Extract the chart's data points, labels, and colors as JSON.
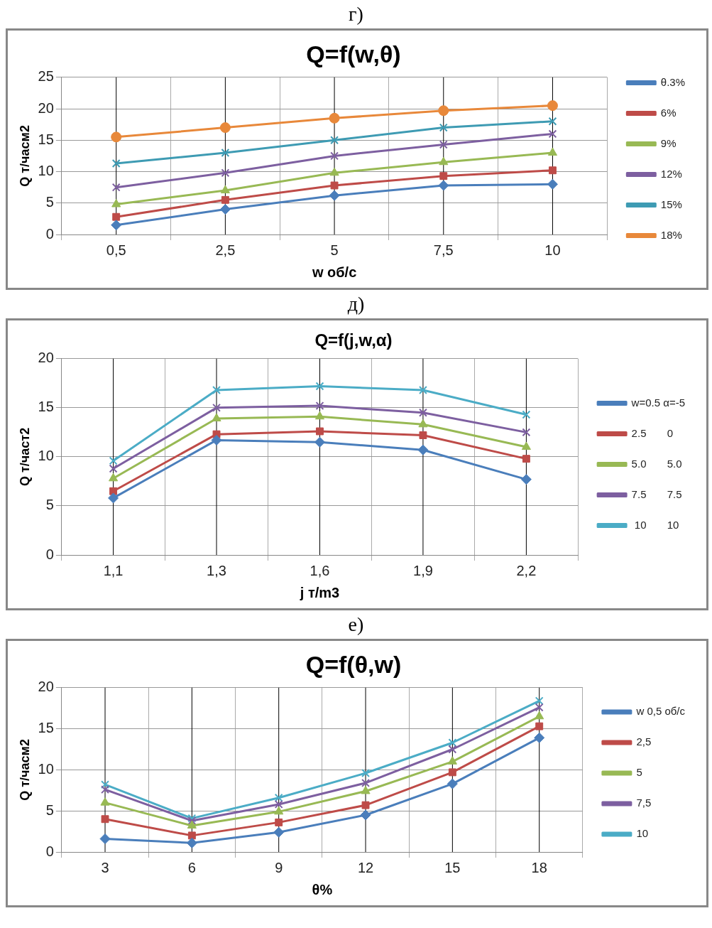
{
  "chart_data": [
    {
      "type": "line",
      "title": "Q=f(w,θ)",
      "annotations": [
        "г)"
      ],
      "xlabel": "w об/с",
      "ylabel": "Q т/часм2",
      "categories": [
        "0,5",
        "2,5",
        "5",
        "7,5",
        "10"
      ],
      "ylim": [
        0,
        25
      ],
      "yticks": [
        0,
        5,
        10,
        15,
        20,
        25
      ],
      "grid": true,
      "legend": "right",
      "series": [
        {
          "name": "θ.3%",
          "color": "#4a7ebb",
          "marker": "diamond",
          "values": [
            1.5,
            4,
            6.2,
            7.8,
            8
          ]
        },
        {
          "name": "6%",
          "color": "#be4b48",
          "marker": "square",
          "values": [
            2.8,
            5.5,
            7.8,
            9.3,
            10.2
          ]
        },
        {
          "name": "9%",
          "color": "#98b954",
          "marker": "triangle",
          "values": [
            4.8,
            7,
            9.8,
            11.5,
            13
          ]
        },
        {
          "name": "12%",
          "color": "#7d5fa0",
          "marker": "cross",
          "values": [
            7.5,
            9.8,
            12.5,
            14.3,
            16
          ]
        },
        {
          "name": "15%",
          "color": "#3e9bb3",
          "marker": "cross",
          "values": [
            11.3,
            13,
            15,
            17,
            18
          ]
        },
        {
          "name": "18%",
          "color": "#e8883a",
          "marker": "circle",
          "values": [
            15.5,
            17,
            18.5,
            19.7,
            20.5
          ]
        }
      ]
    },
    {
      "type": "line",
      "title": "Q=f(j,w,α)",
      "annotations": [
        "д)"
      ],
      "xlabel": "j т/m3",
      "ylabel": "Q т/част2",
      "categories": [
        "1,1",
        "1,3",
        "1,6",
        "1,9",
        "2,2"
      ],
      "ylim": [
        0,
        20
      ],
      "yticks": [
        0,
        5,
        10,
        15,
        20
      ],
      "grid": true,
      "legend": "right",
      "series": [
        {
          "name": "w=0.5 α=-5",
          "color": "#4a7ebb",
          "marker": "diamond",
          "values": [
            5.8,
            11.7,
            11.5,
            10.7,
            7.7
          ]
        },
        {
          "name": "2.5       0",
          "color": "#be4b48",
          "marker": "square",
          "values": [
            6.5,
            12.3,
            12.6,
            12.2,
            9.8
          ]
        },
        {
          "name": "5.0       5.0",
          "color": "#98b954",
          "marker": "triangle",
          "values": [
            7.8,
            13.9,
            14.1,
            13.3,
            11
          ]
        },
        {
          "name": "7.5       7.5",
          "color": "#7d5fa0",
          "marker": "cross",
          "values": [
            8.8,
            15,
            15.2,
            14.5,
            12.5
          ]
        },
        {
          "name": " 10       10",
          "color": "#4bacc6",
          "marker": "cross",
          "values": [
            9.6,
            16.8,
            17.2,
            16.8,
            14.3
          ]
        }
      ]
    },
    {
      "type": "line",
      "title": "Q=f(θ,w)",
      "annotations": [
        "е)"
      ],
      "xlabel": "θ%",
      "ylabel": "Q т/часм2",
      "categories": [
        "3",
        "6",
        "9",
        "12",
        "15",
        "18"
      ],
      "ylim": [
        0,
        20
      ],
      "yticks": [
        0,
        5,
        10,
        15,
        20
      ],
      "grid": true,
      "legend": "right",
      "series": [
        {
          "name": "w 0,5 об/с",
          "color": "#4a7ebb",
          "marker": "diamond",
          "values": [
            1.6,
            1.1,
            2.4,
            4.5,
            8.3,
            13.9
          ]
        },
        {
          "name": "2,5",
          "color": "#be4b48",
          "marker": "square",
          "values": [
            4,
            2,
            3.6,
            5.7,
            9.7,
            15.3
          ]
        },
        {
          "name": "5",
          "color": "#98b954",
          "marker": "triangle",
          "values": [
            6,
            3.2,
            4.9,
            7.4,
            11,
            16.5
          ]
        },
        {
          "name": "7,5",
          "color": "#7d5fa0",
          "marker": "cross",
          "values": [
            7.6,
            3.8,
            5.8,
            8.4,
            12.5,
            17.6
          ]
        },
        {
          "name": "10",
          "color": "#4bacc6",
          "marker": "cross",
          "values": [
            8.2,
            4.1,
            6.6,
            9.6,
            13.3,
            18.4
          ]
        }
      ]
    }
  ]
}
